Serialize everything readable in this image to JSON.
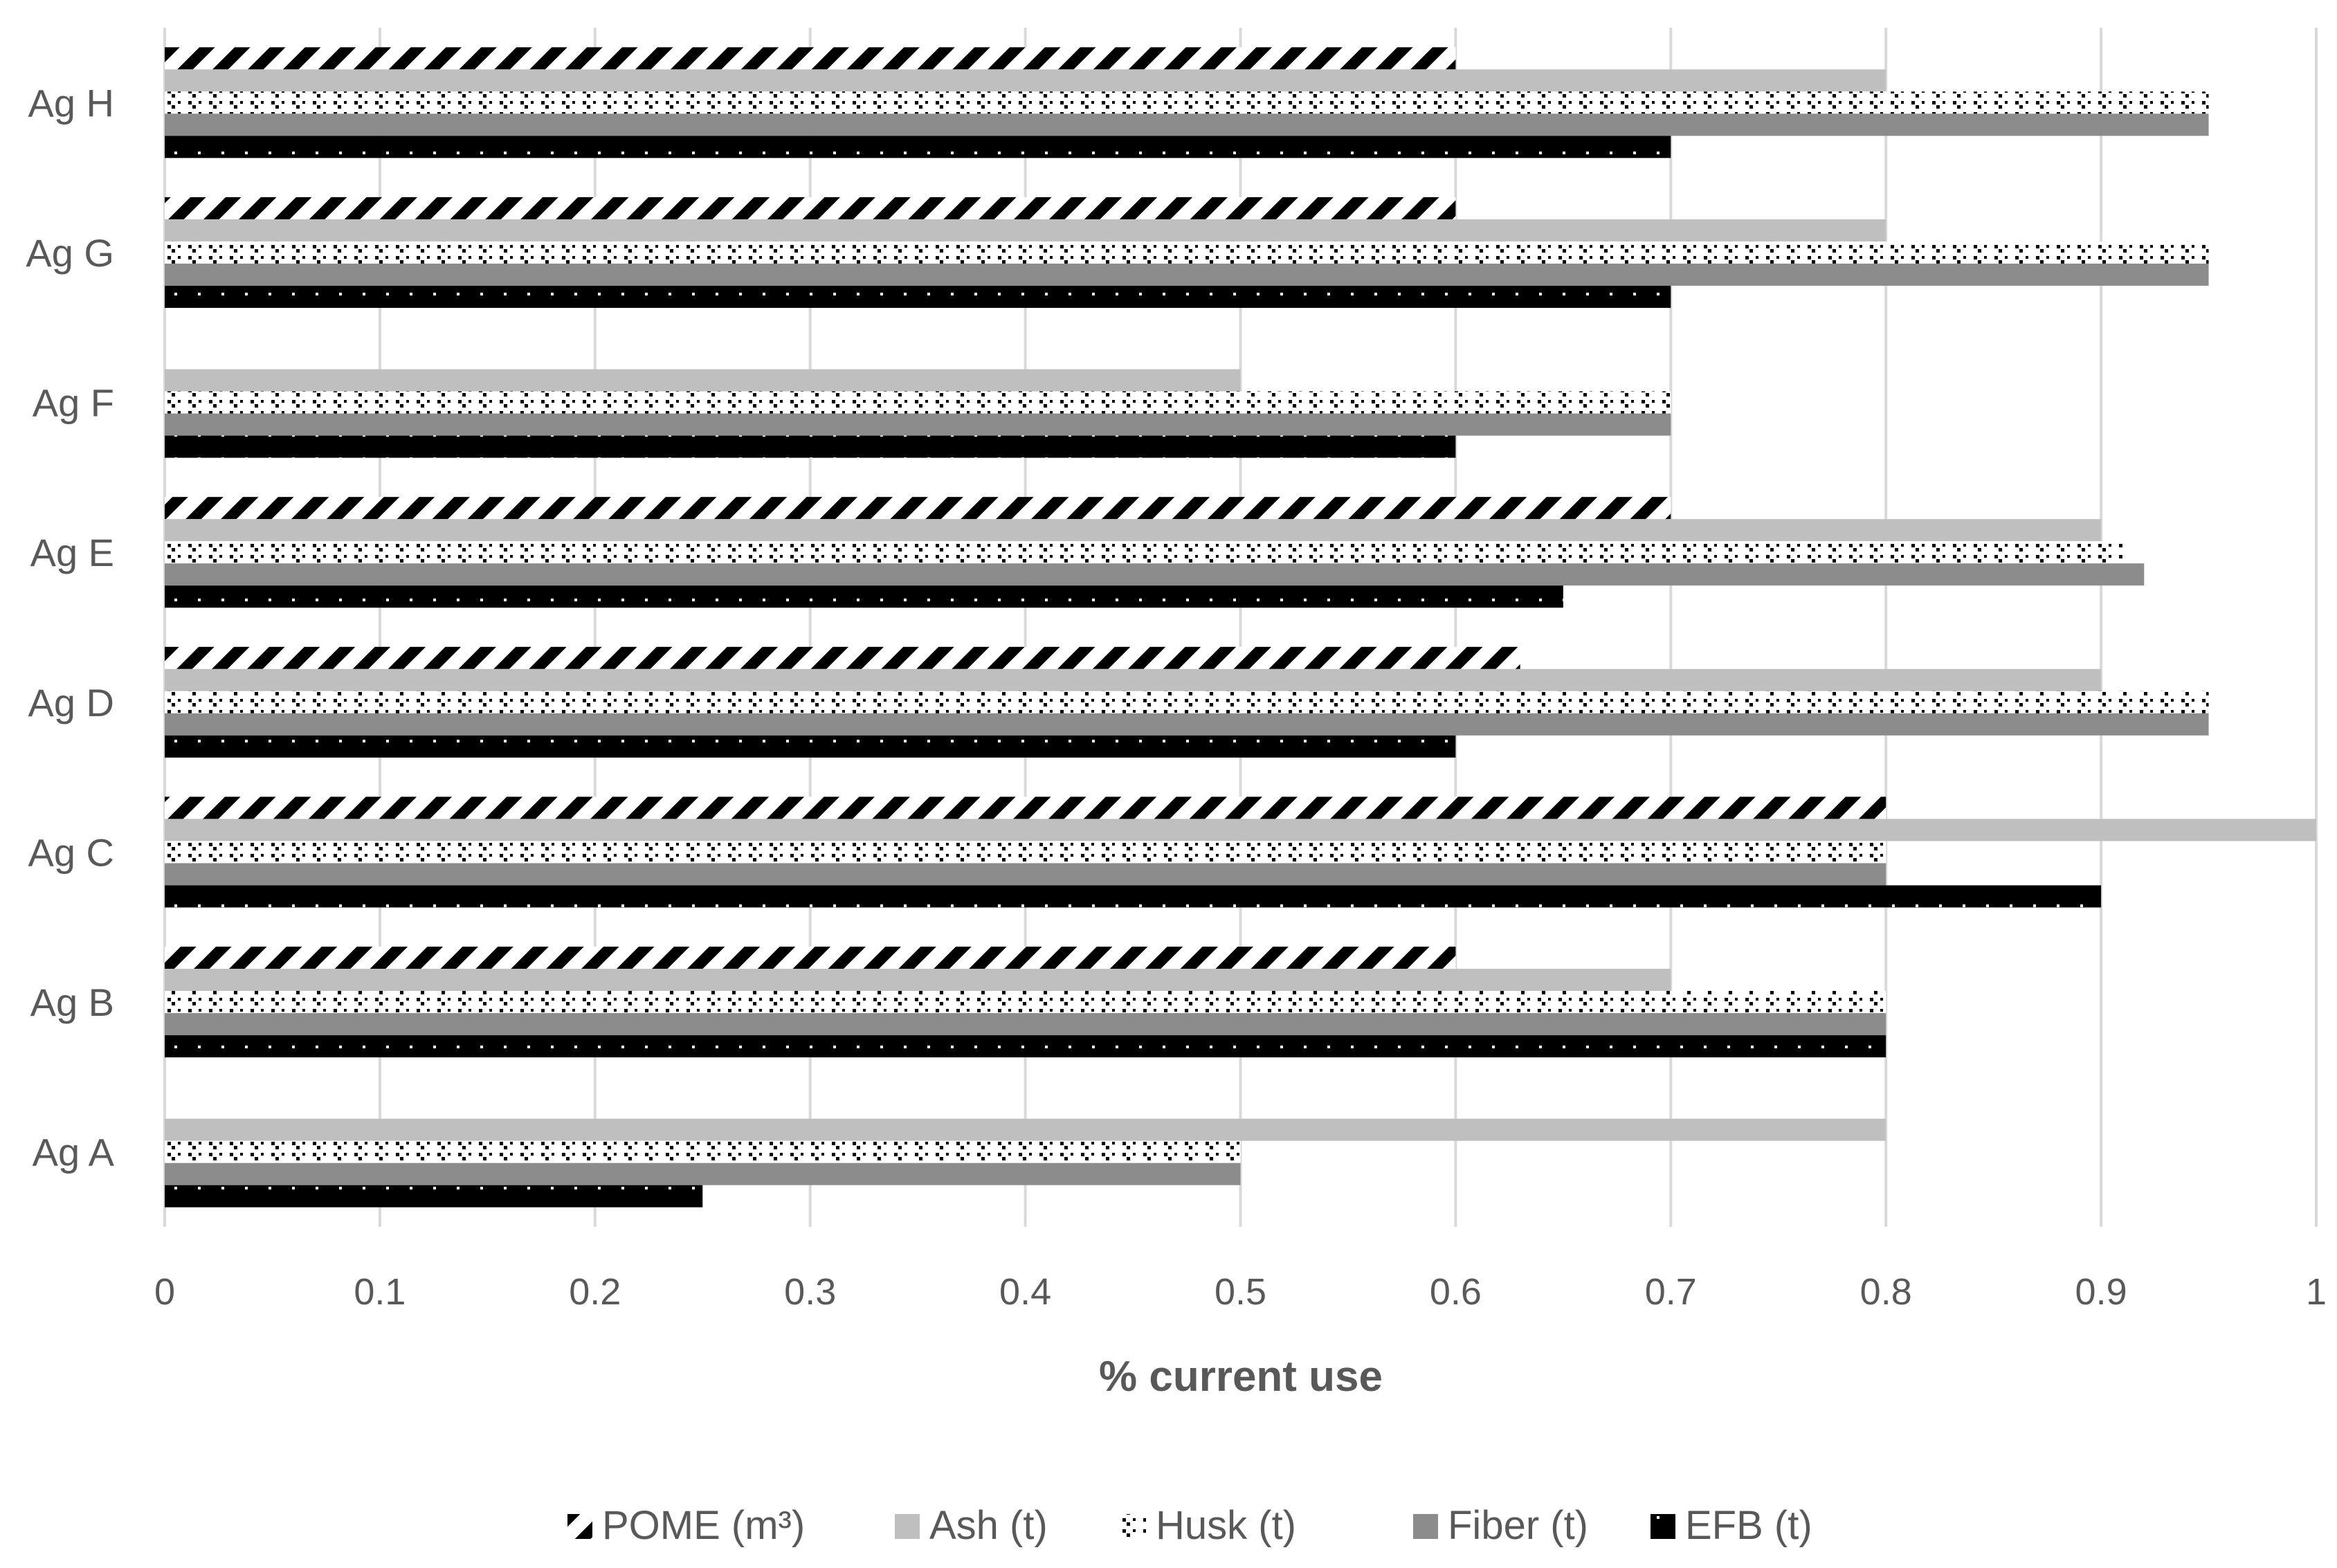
{
  "chart_data": {
    "type": "bar",
    "orientation": "horizontal",
    "xlabel": "% current use",
    "ylabel": "",
    "xlim": [
      0,
      1
    ],
    "ticks": [
      "0",
      "0.1",
      "0.2",
      "0.3",
      "0.4",
      "0.5",
      "0.6",
      "0.7",
      "0.8",
      "0.9",
      "1"
    ],
    "categories": [
      "Ag A",
      "Ag B",
      "Ag C",
      "Ag D",
      "Ag E",
      "Ag F",
      "Ag G",
      "Ag H"
    ],
    "grid": true,
    "legend_position": "bottom",
    "series": [
      {
        "name": "POME (m³)",
        "values": [
          null,
          0.6,
          0.8,
          0.63,
          0.7,
          null,
          0.6,
          0.6
        ],
        "pattern": "diagonal-stripe",
        "color": "#000000"
      },
      {
        "name": "Ash (t)",
        "values": [
          0.8,
          0.7,
          1.0,
          0.9,
          0.9,
          0.5,
          0.8,
          0.8
        ],
        "pattern": "solid",
        "color": "#bfbfbf"
      },
      {
        "name": "Husk (t)",
        "values": [
          0.5,
          0.8,
          0.8,
          0.95,
          0.91,
          0.7,
          0.95,
          0.95
        ],
        "pattern": "sparse-dash",
        "color": "#000000"
      },
      {
        "name": "Fiber (t)",
        "values": [
          0.5,
          0.8,
          0.8,
          0.95,
          0.92,
          0.7,
          0.95,
          0.95
        ],
        "pattern": "solid",
        "color": "#8c8c8c"
      },
      {
        "name": "EFB (t)",
        "values": [
          0.25,
          0.8,
          0.9,
          0.6,
          0.65,
          0.6,
          0.7,
          0.7
        ],
        "pattern": "dotted-dark",
        "color": "#000000"
      }
    ]
  }
}
